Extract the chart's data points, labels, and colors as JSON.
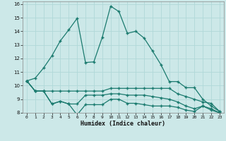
{
  "xlabel": "Humidex (Indice chaleur)",
  "bg_color": "#cce8e8",
  "grid_color": "#b0d8d8",
  "line_color": "#1a7a6e",
  "xlim": [
    -0.5,
    23.5
  ],
  "ylim": [
    8,
    16.2
  ],
  "xticks": [
    0,
    1,
    2,
    3,
    4,
    5,
    6,
    7,
    8,
    9,
    10,
    11,
    12,
    13,
    14,
    15,
    16,
    17,
    18,
    19,
    20,
    21,
    22,
    23
  ],
  "yticks": [
    8,
    9,
    10,
    11,
    12,
    13,
    14,
    15,
    16
  ],
  "series1_x": [
    0,
    1,
    2,
    3,
    4,
    5,
    6,
    7,
    8,
    9,
    10,
    11,
    12,
    13,
    14,
    15,
    16,
    17,
    18,
    19,
    20,
    21,
    22,
    23
  ],
  "series1_y": [
    10.35,
    10.55,
    11.3,
    12.2,
    13.3,
    14.1,
    14.95,
    11.7,
    11.75,
    13.55,
    15.85,
    15.45,
    13.85,
    14.0,
    13.5,
    12.55,
    11.55,
    10.3,
    10.3,
    9.85,
    9.85,
    9.0,
    8.5,
    8.1
  ],
  "series2_x": [
    0,
    1,
    2,
    3,
    4,
    5,
    6,
    7,
    8,
    9,
    10,
    11,
    12,
    13,
    14,
    15,
    16,
    17,
    18,
    19,
    20,
    21,
    22,
    23
  ],
  "series2_y": [
    10.35,
    9.6,
    9.6,
    9.6,
    9.6,
    9.6,
    9.6,
    9.6,
    9.6,
    9.6,
    9.8,
    9.8,
    9.8,
    9.8,
    9.8,
    9.8,
    9.8,
    9.8,
    9.4,
    9.2,
    9.0,
    8.8,
    8.7,
    8.1
  ],
  "series3_x": [
    0,
    1,
    2,
    3,
    4,
    5,
    6,
    7,
    8,
    9,
    10,
    11,
    12,
    13,
    14,
    15,
    16,
    17,
    18,
    19,
    20,
    21,
    22,
    23
  ],
  "series3_y": [
    10.35,
    9.6,
    9.6,
    8.65,
    8.85,
    8.65,
    7.85,
    8.6,
    8.6,
    8.6,
    9.0,
    9.0,
    8.7,
    8.7,
    8.6,
    8.5,
    8.5,
    8.5,
    8.4,
    8.2,
    8.1,
    8.5,
    8.2,
    8.0
  ],
  "series4_x": [
    0,
    1,
    2,
    3,
    4,
    5,
    6,
    7,
    8,
    9,
    10,
    11,
    12,
    13,
    14,
    15,
    16,
    17,
    18,
    19,
    20,
    21,
    22,
    23
  ],
  "series4_y": [
    10.35,
    9.6,
    9.6,
    8.65,
    8.85,
    8.65,
    8.65,
    9.3,
    9.3,
    9.3,
    9.4,
    9.4,
    9.3,
    9.3,
    9.3,
    9.2,
    9.1,
    9.0,
    8.8,
    8.5,
    8.3,
    8.5,
    8.3,
    8.0
  ]
}
